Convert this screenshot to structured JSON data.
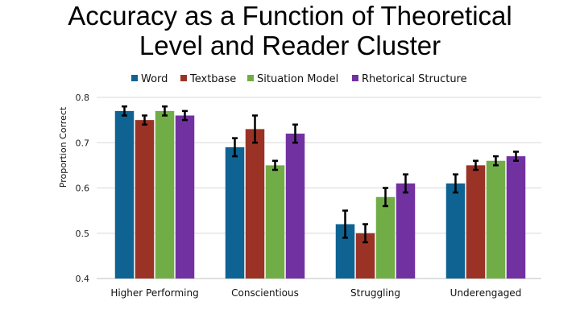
{
  "title_lines": [
    "Accuracy as a Function of Theoretical",
    "Level and Reader Cluster"
  ],
  "chart_data": {
    "type": "bar",
    "title": "Accuracy as a Function of Theoretical Level and Reader Cluster",
    "xlabel": "",
    "ylabel": "Proportion Correct",
    "ylim": [
      0.4,
      0.8
    ],
    "yticks": [
      "0.4",
      "0.5",
      "0.6",
      "0.7",
      "0.8"
    ],
    "grid": true,
    "legend_position": "top",
    "categories": [
      "Higher Performing",
      "Conscientious",
      "Struggling",
      "Underengaged"
    ],
    "series": [
      {
        "name": "Word",
        "color": "#0E6393",
        "values": [
          0.77,
          0.69,
          0.52,
          0.61
        ],
        "errors": [
          0.01,
          0.02,
          0.03,
          0.02
        ]
      },
      {
        "name": "Textbase",
        "color": "#9A3326",
        "values": [
          0.75,
          0.73,
          0.5,
          0.65
        ],
        "errors": [
          0.01,
          0.03,
          0.02,
          0.01
        ]
      },
      {
        "name": "Situation Model",
        "color": "#71AD47",
        "values": [
          0.77,
          0.65,
          0.58,
          0.66
        ],
        "errors": [
          0.01,
          0.01,
          0.02,
          0.01
        ]
      },
      {
        "name": "Rhetorical Structure",
        "color": "#7231A0",
        "values": [
          0.76,
          0.72,
          0.61,
          0.67
        ],
        "errors": [
          0.01,
          0.02,
          0.02,
          0.01
        ]
      }
    ]
  }
}
